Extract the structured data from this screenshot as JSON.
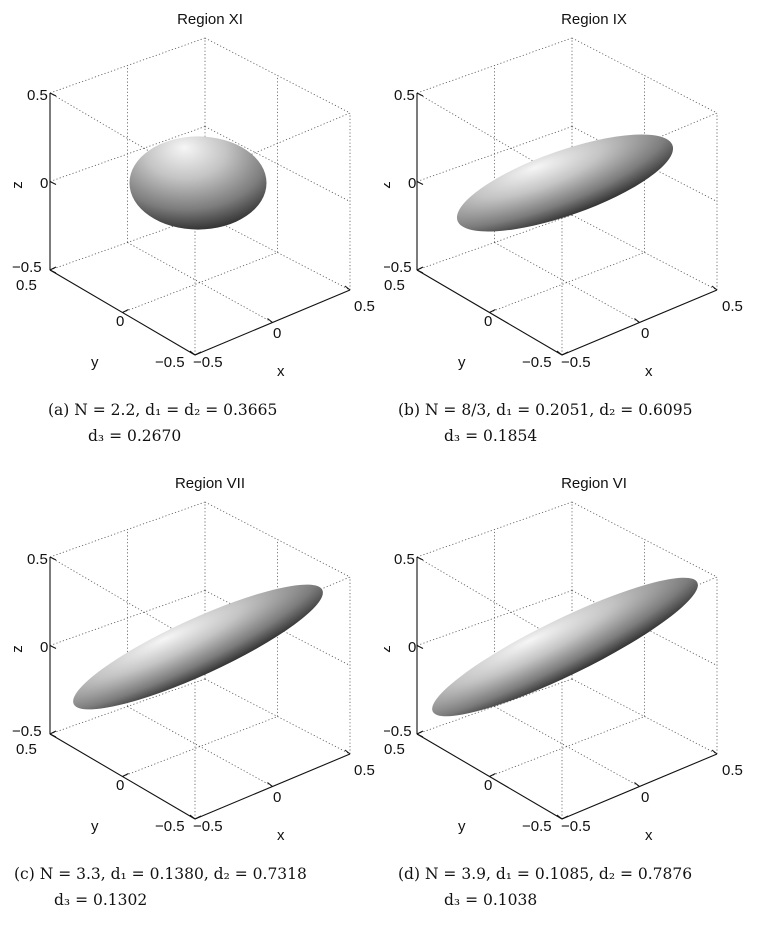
{
  "axis_labels": {
    "x": "x",
    "y": "y",
    "z": "z"
  },
  "ticks": {
    "z": [
      "0.5",
      "0",
      "−0.5"
    ],
    "y": [
      "0.5",
      "0",
      "−0.5"
    ],
    "x": [
      "−0.5",
      "0",
      "0.5"
    ]
  },
  "panels": [
    {
      "title": "Region XI",
      "caption_line1": "(a) N = 2.2, d₁ = d₂ = 0.3665",
      "caption_line2": "d₃ = 0.2670",
      "shape": {
        "d1": 0.3665,
        "d2": 0.3665,
        "d3": 0.267
      }
    },
    {
      "title": "Region IX",
      "caption_line1": "(b) N = 8/3, d₁ = 0.2051, d₂ = 0.6095",
      "caption_line2": "d₃ = 0.1854",
      "shape": {
        "d1": 0.2051,
        "d2": 0.6095,
        "d3": 0.1854
      }
    },
    {
      "title": "Region VII",
      "caption_line1": "(c) N = 3.3, d₁ = 0.1380, d₂ = 0.7318",
      "caption_line2": "d₃ = 0.1302",
      "shape": {
        "d1": 0.138,
        "d2": 0.7318,
        "d3": 0.1302
      }
    },
    {
      "title": "Region VI",
      "caption_line1": "(d) N = 3.9, d₁ = 0.1085, d₂ = 0.7876",
      "caption_line2": "d₃ = 0.1038",
      "shape": {
        "d1": 0.1085,
        "d2": 0.7876,
        "d3": 0.1038
      }
    }
  ]
}
